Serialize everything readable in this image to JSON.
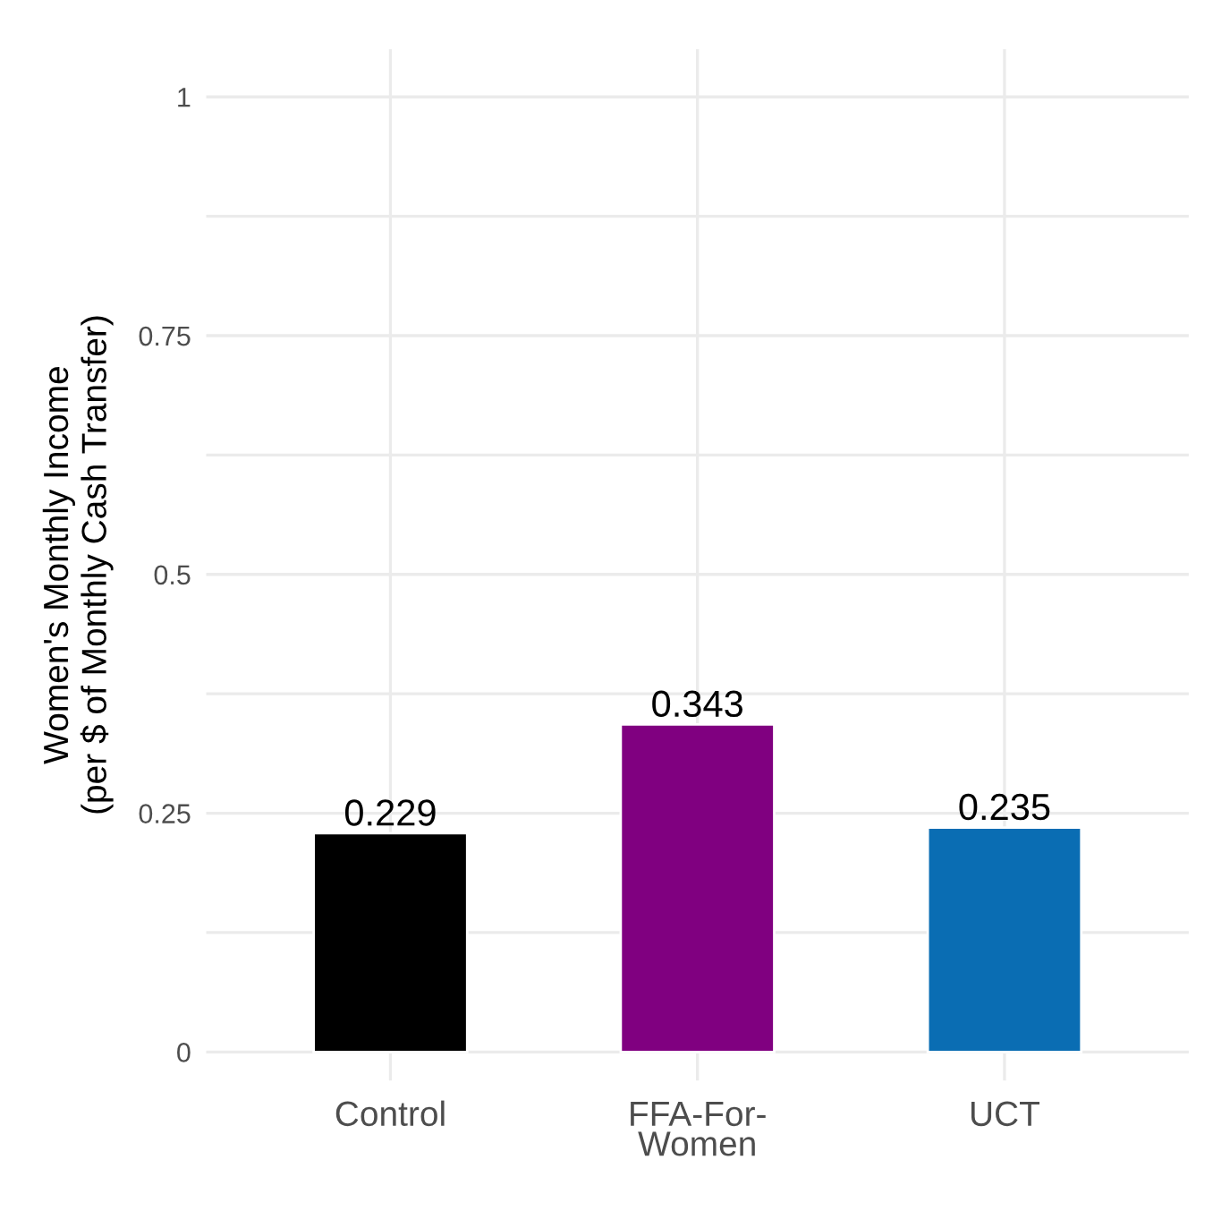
{
  "chart_data": {
    "type": "bar",
    "ylabel": "Women's Monthly Income\n(per $ of Monthly Cash Transfer)",
    "categories": [
      "Control",
      "FFA-For-\nWomen",
      "UCT"
    ],
    "values": [
      0.229,
      0.343,
      0.235
    ],
    "colors": [
      "#000000",
      "#800080",
      "#0a6db3"
    ],
    "ylim": [
      -0.03,
      1.05
    ],
    "yticks": [
      0,
      {
        "value": 0.125,
        "label": null
      },
      0.25,
      {
        "value": 0.375,
        "label": null
      },
      0.5,
      {
        "value": 0.625,
        "label": null
      },
      0.75,
      {
        "value": 0.875,
        "label": null
      },
      1
    ],
    "grid": true,
    "data_labels": true
  }
}
